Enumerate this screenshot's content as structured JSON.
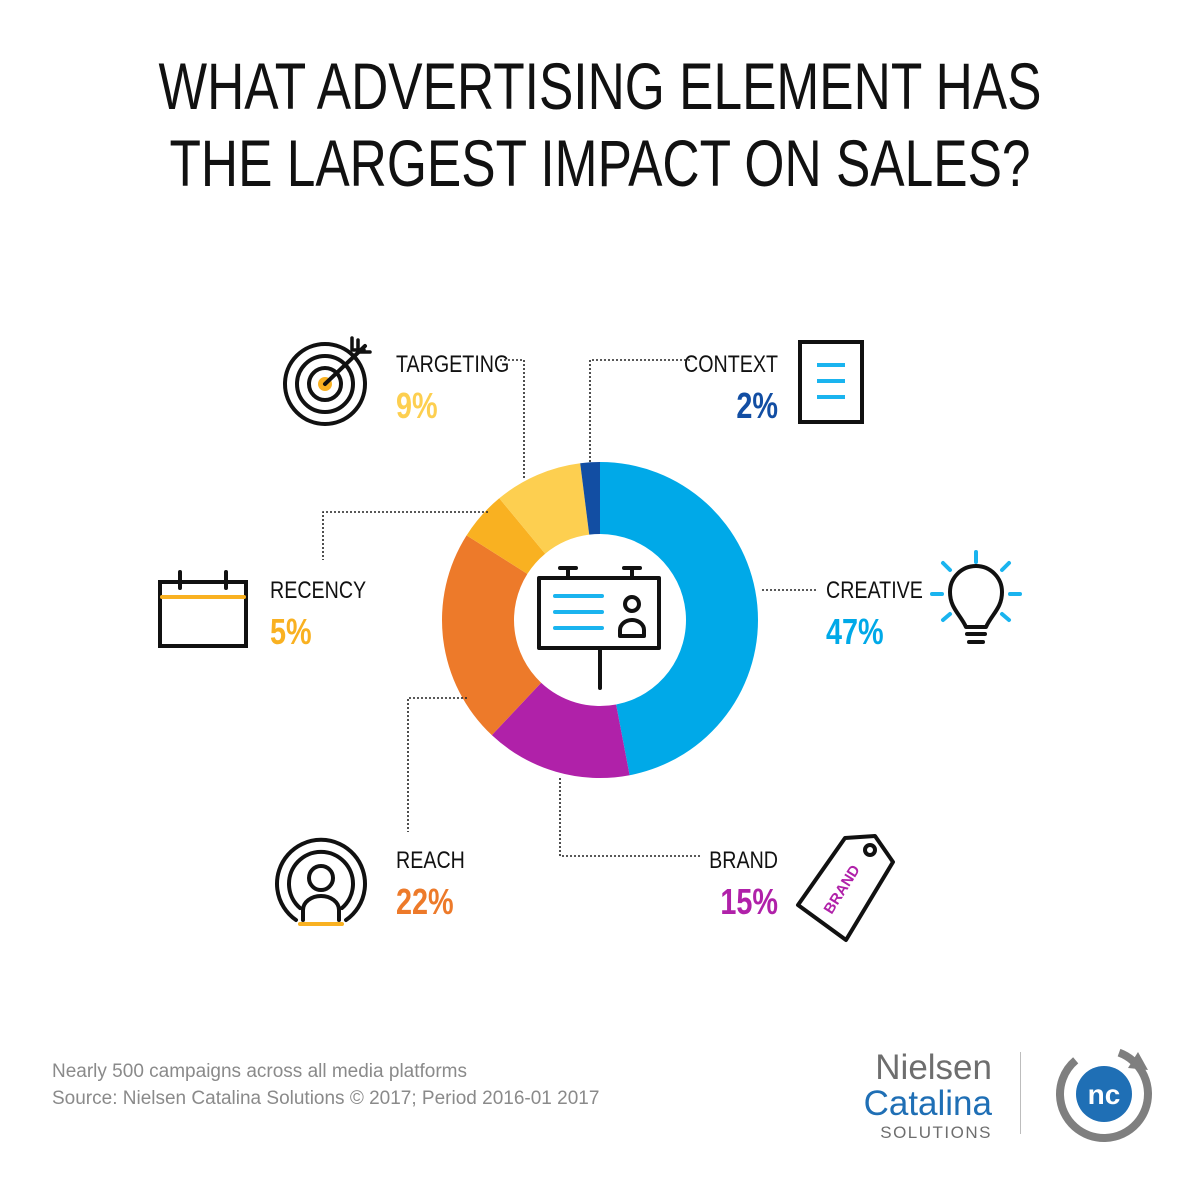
{
  "title": {
    "line1": "WHAT ADVERTISING ELEMENT HAS",
    "line2": "THE LARGEST IMPACT ON SALES?"
  },
  "chart_data": {
    "type": "pie",
    "variant": "donut",
    "title": "WHAT ADVERTISING ELEMENT HAS THE LARGEST IMPACT ON SALES?",
    "slices": [
      {
        "name": "CREATIVE",
        "label": "47%",
        "value": 47,
        "color": "#00a9e8",
        "icon": "lightbulb-icon"
      },
      {
        "name": "BRAND",
        "label": "15%",
        "value": 15,
        "color": "#b021a9",
        "icon": "price-tag-icon"
      },
      {
        "name": "REACH",
        "label": "22%",
        "value": 22,
        "color": "#ed7a2a",
        "icon": "broadcast-person-icon"
      },
      {
        "name": "RECENCY",
        "label": "5%",
        "value": 5,
        "color": "#f9b121",
        "icon": "calendar-icon"
      },
      {
        "name": "TARGETING",
        "label": "9%",
        "value": 9,
        "color": "#fdcf50",
        "icon": "target-icon"
      },
      {
        "name": "CONTEXT",
        "label": "2%",
        "value": 2,
        "color": "#124ea3",
        "icon": "document-icon"
      }
    ],
    "center_icon": "billboard-icon",
    "brand_tag_text": "BRAND"
  },
  "footer": {
    "line1": "Nearly 500 campaigns across all media platforms",
    "line2": "Source: Nielsen Catalina Solutions © 2017; Period 2016-01 2017"
  },
  "logo": {
    "line1": "Nielsen",
    "line2": "Catalina",
    "line3": "SOLUTIONS",
    "mark": "nc",
    "colors": {
      "gray": "#6e6e6e",
      "blue": "#1f6fb5"
    }
  }
}
